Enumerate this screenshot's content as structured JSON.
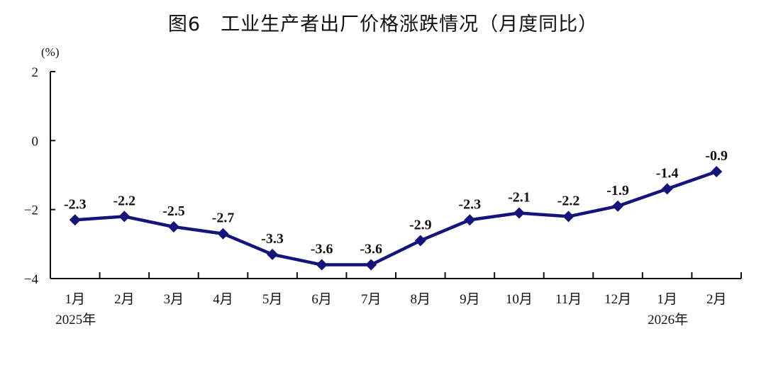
{
  "chart_data": {
    "type": "line",
    "title": "图6　工业生产者出厂价格涨跌情况（月度同比）",
    "unit_label": "(%)",
    "categories": [
      "1月",
      "2月",
      "3月",
      "4月",
      "5月",
      "6月",
      "7月",
      "8月",
      "9月",
      "10月",
      "11月",
      "12月",
      "1月",
      "2月"
    ],
    "year_labels": [
      {
        "index": 0,
        "text": "2025年"
      },
      {
        "index": 12,
        "text": "2026年"
      }
    ],
    "series": [
      {
        "values": [
          -2.3,
          -2.2,
          -2.5,
          -2.7,
          -3.3,
          -3.6,
          -3.6,
          -2.9,
          -2.3,
          -2.1,
          -2.2,
          -1.9,
          -1.4,
          -0.9
        ],
        "data_labels": [
          "-2.3",
          "-2.2",
          "-2.5",
          "-2.7",
          "-3.3",
          "-3.6",
          "-3.6",
          "-2.9",
          "-2.3",
          "-2.1",
          "-2.2",
          "-1.9",
          "-1.4",
          "-0.9"
        ]
      }
    ],
    "ylim": [
      -4,
      2
    ],
    "yticks": [
      -4,
      -2,
      0,
      2
    ],
    "ytick_labels": [
      "−4",
      "−2",
      "0",
      "2"
    ],
    "grid": false,
    "colors": {
      "line": "#14147a",
      "axis": "#111111"
    },
    "marker": "diamond"
  }
}
